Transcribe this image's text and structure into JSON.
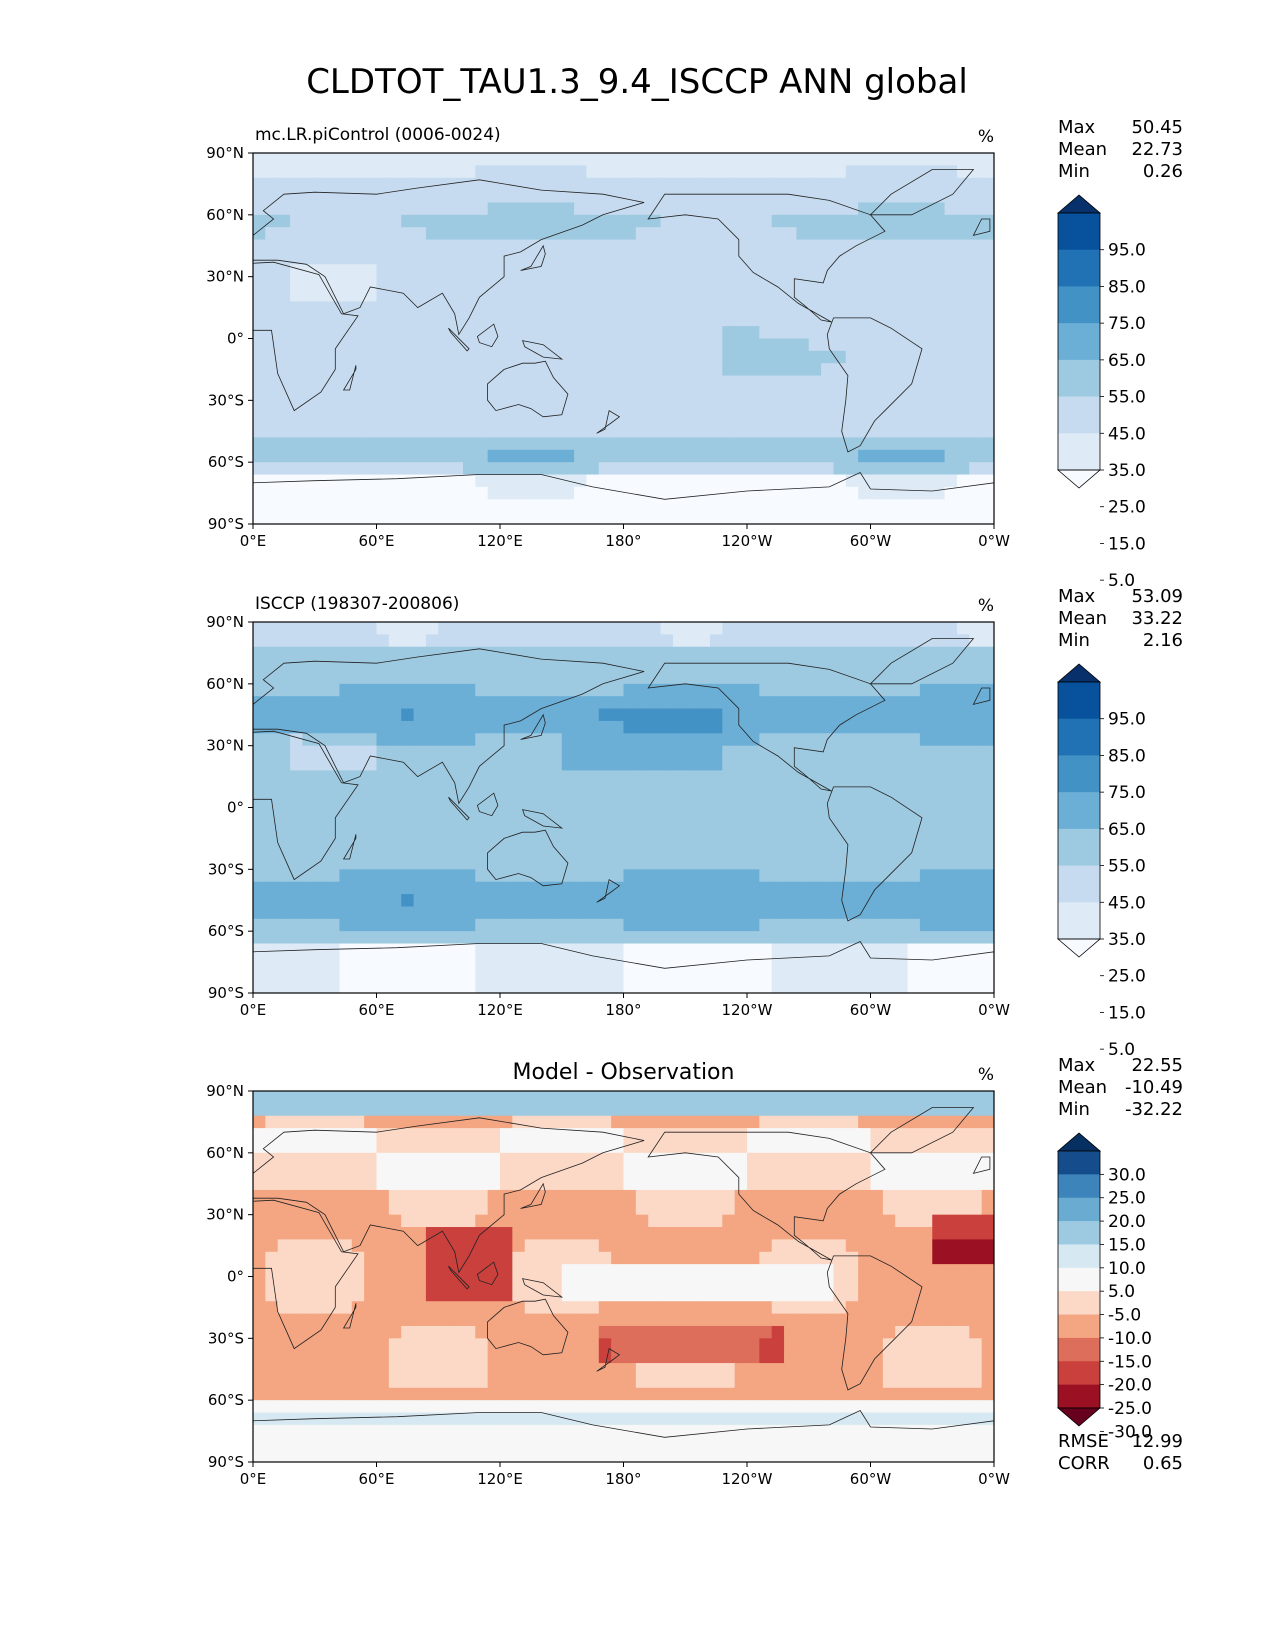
{
  "figure_title": "CLDTOT_TAU1.3_9.4_ISCCP ANN global",
  "colors": {
    "blues": [
      "#f7fbff",
      "#deebf7",
      "#c6dbef",
      "#9ecae1",
      "#6baed6",
      "#4292c6",
      "#2171b5",
      "#08519c",
      "#08306b"
    ],
    "diff": [
      "#67001f",
      "#9b1123",
      "#c9403d",
      "#dd6e5b",
      "#f4a582",
      "#fcd9c6",
      "#f7f7f7",
      "#d6e8f2",
      "#9dcae1",
      "#6aabd2",
      "#3d84ba",
      "#154c8c",
      "#053061"
    ]
  },
  "chart_data": [
    {
      "type": "heatmap",
      "panel": "model",
      "title_left": "mc.LR.piControl (0006-0024)",
      "title_center": "",
      "units": "%",
      "stats": {
        "Max": "50.45",
        "Mean": "22.73",
        "Min": "0.26"
      },
      "stat_labels": [
        "Max",
        "Mean",
        "Min"
      ],
      "colorbar_ticks": [
        "95.0",
        "85.0",
        "75.0",
        "65.0",
        "55.0",
        "45.0",
        "35.0",
        "25.0",
        "15.0",
        "5.0"
      ],
      "xticks": [
        "0°E",
        "60°E",
        "120°E",
        "180°",
        "120°W",
        "60°W",
        "0°W"
      ],
      "yticks": [
        "90°N",
        "60°N",
        "30°N",
        "0°",
        "30°S",
        "60°S",
        "90°S"
      ],
      "xlim": [
        0,
        360
      ],
      "ylim": [
        -90,
        90
      ]
    },
    {
      "type": "heatmap",
      "panel": "observation",
      "title_left": "ISCCP (198307-200806)",
      "title_center": "",
      "units": "%",
      "stats": {
        "Max": "53.09",
        "Mean": "33.22",
        "Min": "2.16"
      },
      "stat_labels": [
        "Max",
        "Mean",
        "Min"
      ],
      "colorbar_ticks": [
        "95.0",
        "85.0",
        "75.0",
        "65.0",
        "55.0",
        "45.0",
        "35.0",
        "25.0",
        "15.0",
        "5.0"
      ],
      "xticks": [
        "0°E",
        "60°E",
        "120°E",
        "180°",
        "120°W",
        "60°W",
        "0°W"
      ],
      "yticks": [
        "90°N",
        "60°N",
        "30°N",
        "0°",
        "30°S",
        "60°S",
        "90°S"
      ],
      "xlim": [
        0,
        360
      ],
      "ylim": [
        -90,
        90
      ]
    },
    {
      "type": "heatmap",
      "panel": "difference",
      "title_left": "",
      "title_center": "Model - Observation",
      "units": "%",
      "stats": {
        "Max": "22.55",
        "Mean": "-10.49",
        "Min": "-32.22"
      },
      "stat_labels": [
        "Max",
        "Mean",
        "Min"
      ],
      "colorbar_ticks": [
        "30.0",
        "25.0",
        "20.0",
        "15.0",
        "10.0",
        "5.0",
        "-5.0",
        "-10.0",
        "-15.0",
        "-20.0",
        "-25.0",
        "-30.0"
      ],
      "xticks": [
        "0°E",
        "60°E",
        "120°E",
        "180°",
        "120°W",
        "60°W",
        "0°W"
      ],
      "yticks": [
        "90°N",
        "60°N",
        "30°N",
        "0°",
        "30°S",
        "60°S",
        "90°S"
      ],
      "xlim": [
        0,
        360
      ],
      "ylim": [
        -90,
        90
      ],
      "metrics": {
        "RMSE": "12.99",
        "CORR": "0.65"
      },
      "metric_labels": [
        "RMSE",
        "CORR"
      ]
    }
  ]
}
